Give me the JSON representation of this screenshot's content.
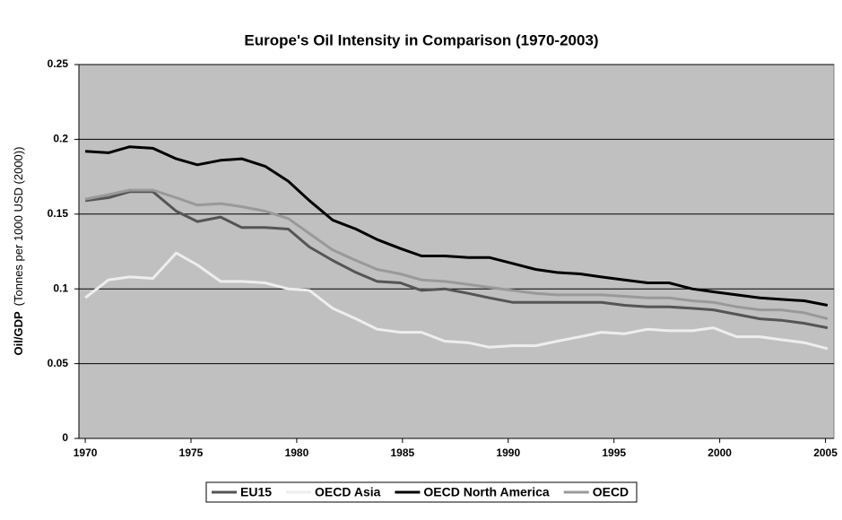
{
  "chart_data": {
    "type": "line",
    "title": "Europe's Oil Intensity in Comparison (1970-2003)",
    "y_label": "Oil/GDP",
    "y_label_units": "(Tonnes per 1000 USD (2000))",
    "x": [
      1970.0,
      1971.1,
      1972.1,
      1973.2,
      1974.3,
      1975.3,
      1976.4,
      1977.4,
      1978.5,
      1979.6,
      1980.6,
      1981.7,
      1982.8,
      1983.8,
      1984.9,
      1985.9,
      1987.0,
      1988.1,
      1989.1,
      1990.2,
      1991.3,
      1992.3,
      1993.4,
      1994.4,
      1995.5,
      1996.6,
      1997.6,
      1998.7,
      1999.7,
      2000.8,
      2001.9,
      2002.9,
      2004.0,
      2005.1
    ],
    "xlim": [
      1969.7,
      2005.4
    ],
    "xticks": [
      1970,
      1975,
      1980,
      1985,
      1990,
      1995,
      2000,
      2005
    ],
    "ylim": [
      0,
      0.25
    ],
    "yticks": [
      0,
      0.05,
      0.1,
      0.15,
      0.2,
      0.25
    ],
    "grid": true,
    "legend": "bottom",
    "plot_background": "#c0c0c0",
    "series": [
      {
        "name": "EU15",
        "color": "#555555",
        "values": [
          0.159,
          0.161,
          0.165,
          0.165,
          0.152,
          0.145,
          0.148,
          0.141,
          0.141,
          0.14,
          0.128,
          0.119,
          0.111,
          0.105,
          0.104,
          0.099,
          0.1,
          0.097,
          0.094,
          0.091,
          0.091,
          0.091,
          0.091,
          0.091,
          0.089,
          0.088,
          0.088,
          0.087,
          0.086,
          0.083,
          0.08,
          0.079,
          0.077,
          0.074
        ]
      },
      {
        "name": "OECD Asia",
        "color": "#eeeeee",
        "values": [
          0.094,
          0.106,
          0.108,
          0.107,
          0.124,
          0.116,
          0.105,
          0.105,
          0.104,
          0.1,
          0.099,
          0.087,
          0.08,
          0.073,
          0.071,
          0.071,
          0.065,
          0.064,
          0.061,
          0.062,
          0.062,
          0.065,
          0.068,
          0.071,
          0.07,
          0.073,
          0.072,
          0.072,
          0.074,
          0.068,
          0.068,
          0.066,
          0.064,
          0.06
        ]
      },
      {
        "name": "OECD North America",
        "color": "#000000",
        "values": [
          0.192,
          0.191,
          0.195,
          0.194,
          0.187,
          0.183,
          0.186,
          0.187,
          0.182,
          0.172,
          0.159,
          0.146,
          0.14,
          0.133,
          0.127,
          0.122,
          0.122,
          0.121,
          0.121,
          0.117,
          0.113,
          0.111,
          0.11,
          0.108,
          0.106,
          0.104,
          0.104,
          0.1,
          0.098,
          0.096,
          0.094,
          0.093,
          0.092,
          0.089
        ]
      },
      {
        "name": "OECD",
        "color": "#999999",
        "values": [
          0.16,
          0.163,
          0.166,
          0.166,
          0.161,
          0.156,
          0.157,
          0.155,
          0.152,
          0.147,
          0.137,
          0.126,
          0.119,
          0.113,
          0.11,
          0.106,
          0.105,
          0.103,
          0.101,
          0.099,
          0.097,
          0.096,
          0.096,
          0.096,
          0.095,
          0.094,
          0.094,
          0.092,
          0.091,
          0.088,
          0.086,
          0.086,
          0.084,
          0.08
        ]
      }
    ]
  }
}
